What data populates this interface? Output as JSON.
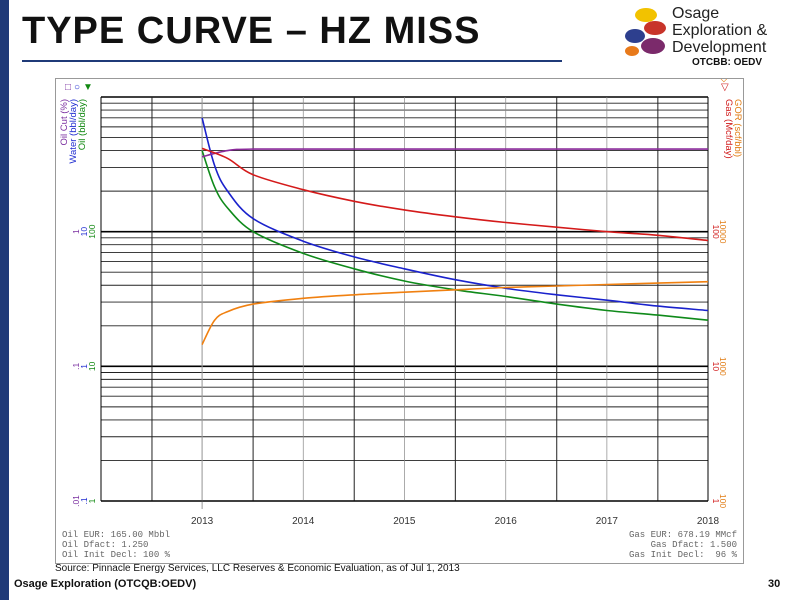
{
  "slide": {
    "title": "TYPE CURVE – HZ MISS",
    "source_note": "Source: Pinnacle Energy Services, LLC Reserves & Economic Evaluation, as of Jul 1, 2013",
    "footer": "Osage Exploration (OTCQB:OEDV)",
    "page_number": "30"
  },
  "logo": {
    "line1": "Osage",
    "line2": "Exploration &",
    "line3": "Development",
    "ticker": "OTCBB: OEDV",
    "colors": [
      "#f2c200",
      "#c8342a",
      "#2d3f8e",
      "#7b2a6b",
      "#e87a1b"
    ]
  },
  "chart_data": {
    "type": "line",
    "title": "",
    "x_ticks": [
      "2013",
      "2014",
      "2015",
      "2016",
      "2017",
      "2018"
    ],
    "x_range": [
      "2012-07-01",
      "2018-07-01"
    ],
    "left_axis": {
      "scale": "log",
      "labels": [
        "Oil Cut (%)",
        "Water (bbl/day)",
        "Oil (bbl/day)"
      ],
      "label_colors": [
        "#7a2ea0",
        "#1e2bd0",
        "#118811"
      ],
      "markers": [
        "□",
        "○",
        "▼"
      ],
      "ticks": [
        {
          "top": "1",
          "mid": "10",
          "bottom": "100",
          "pos": 2
        },
        {
          "top": ".1",
          "mid": "1",
          "bottom": "10",
          "pos": 1
        },
        {
          "top": ".01",
          "mid": ".1",
          "bottom": "1",
          "pos": 0
        }
      ]
    },
    "right_axis": {
      "scale": "log",
      "labels": [
        "GOR (scf/bbl)",
        "Gas (Mcf/day)"
      ],
      "label_colors": [
        "#e07a10",
        "#d01818"
      ],
      "markers": [
        "◇",
        "▽"
      ],
      "ticks": [
        {
          "top": "10000",
          "bottom": "100",
          "pos": 2
        },
        {
          "top": "1000",
          "bottom": "10",
          "pos": 1
        },
        {
          "top": "100",
          "bottom": "1",
          "pos": 0
        }
      ]
    },
    "series": [
      {
        "name": "Oil (bbl/day)",
        "color": "#0f8a1a",
        "axis": "left",
        "scale_top": 1000,
        "x": [
          "2013-07-01",
          "2013-08-15",
          "2013-10-01",
          "2014-01-01",
          "2014-07-01",
          "2015-01-01",
          "2015-07-01",
          "2016-01-01",
          "2016-07-01",
          "2017-01-01",
          "2017-07-01",
          "2018-01-01",
          "2018-07-01"
        ],
        "values": [
          400,
          215,
          150,
          100,
          69,
          53,
          43,
          37,
          33,
          29,
          26,
          24,
          22
        ]
      },
      {
        "name": "Water (bbl/day)",
        "color": "#1a22cc",
        "axis": "left",
        "scale_top": 1000,
        "x": [
          "2013-07-01",
          "2013-08-15",
          "2013-10-01",
          "2014-01-01",
          "2014-07-01",
          "2015-01-01",
          "2015-07-01",
          "2016-01-01",
          "2016-07-01",
          "2017-01-01",
          "2017-07-01",
          "2018-01-01",
          "2018-07-01"
        ],
        "values": [
          700,
          310,
          200,
          125,
          85,
          65,
          53,
          44,
          38,
          34,
          31,
          28,
          26
        ]
      },
      {
        "name": "Oil Cut (%)",
        "color": "#8a2a9a",
        "axis": "left",
        "scale_top": 100,
        "x": [
          "2013-07-01",
          "2013-10-01",
          "2014-01-01",
          "2015-01-01",
          "2016-01-01",
          "2017-01-01",
          "2018-01-01",
          "2018-07-01"
        ],
        "values": [
          36,
          40,
          41,
          41,
          41,
          41,
          41,
          41
        ]
      },
      {
        "name": "Gas (Mcf/day)",
        "color": "#d41a1a",
        "axis": "right",
        "scale_top": 1000,
        "x": [
          "2013-07-01",
          "2013-10-01",
          "2014-01-01",
          "2014-07-01",
          "2015-01-01",
          "2015-07-01",
          "2016-01-01",
          "2016-07-01",
          "2017-01-01",
          "2017-07-01",
          "2018-01-01",
          "2018-07-01"
        ],
        "values": [
          415,
          350,
          265,
          205,
          168,
          145,
          129,
          117,
          108,
          100,
          94,
          86
        ]
      },
      {
        "name": "GOR (scf/bbl)",
        "color": "#f08010",
        "axis": "right",
        "scale_top": 100000,
        "x": [
          "2013-07-01",
          "2013-08-15",
          "2013-10-01",
          "2014-01-01",
          "2014-07-01",
          "2015-01-01",
          "2015-07-01",
          "2016-01-01",
          "2016-07-01",
          "2017-01-01",
          "2017-07-01",
          "2018-01-01",
          "2018-07-01"
        ],
        "values": [
          1450,
          2200,
          2550,
          2900,
          3200,
          3400,
          3550,
          3700,
          3850,
          3950,
          4050,
          4150,
          4250
        ]
      }
    ],
    "stats_left": [
      "Oil EUR: 165.00 Mbbl",
      "Oil Dfact: 1.250",
      "Oil Init Decl: 100 %"
    ],
    "stats_right": [
      "Gas EUR: 678.19 MMcf",
      "Gas Dfact: 1.500",
      "Gas Init Decl:  96 %"
    ]
  }
}
